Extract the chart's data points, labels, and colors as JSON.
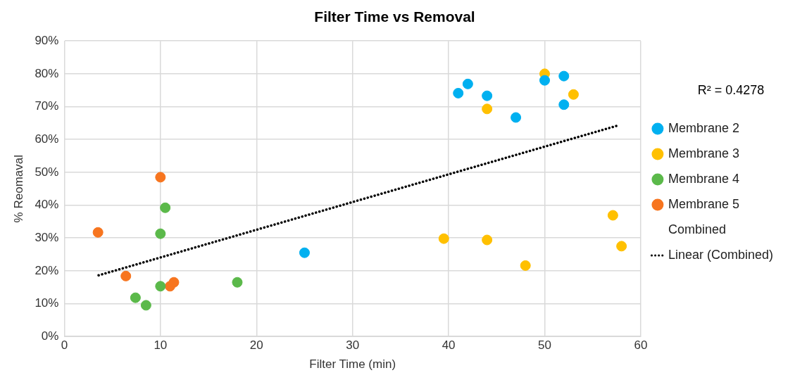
{
  "chart_data": {
    "type": "scatter",
    "title": "Filter Time vs Removal",
    "xlabel": "Filter Time (min)",
    "ylabel": "% Reomaval",
    "xlim": [
      0,
      60
    ],
    "xticks": [
      0,
      10,
      20,
      30,
      40,
      50,
      60
    ],
    "ylim": [
      0,
      90
    ],
    "yticks": [
      {
        "value": 0,
        "label": "0%"
      },
      {
        "value": 10,
        "label": "10%"
      },
      {
        "value": 20,
        "label": "20%"
      },
      {
        "value": 30,
        "label": "30%"
      },
      {
        "value": 40,
        "label": "40%"
      },
      {
        "value": 50,
        "label": "50%"
      },
      {
        "value": 60,
        "label": "60%"
      },
      {
        "value": 70,
        "label": "70%"
      },
      {
        "value": 80,
        "label": "80%"
      },
      {
        "value": 90,
        "label": "90%"
      }
    ],
    "grid": true,
    "legend": "right",
    "marker": "circle",
    "annotations": [
      "R² = 0.4278"
    ],
    "series": [
      {
        "name": "Membrane 2",
        "color": "#00b0f0",
        "x": [
          25,
          41,
          42,
          44,
          47,
          50,
          52,
          52
        ],
        "values": [
          25.5,
          74.1,
          76.9,
          73.3,
          66.7,
          78,
          79.3,
          70.6
        ]
      },
      {
        "name": "Membrane 3",
        "color": "#ffc000",
        "x": [
          39.5,
          44,
          44,
          48,
          50,
          53,
          57.1,
          58
        ],
        "values": [
          29.8,
          69.3,
          29.4,
          21.6,
          80,
          73.7,
          36.9,
          27.5
        ]
      },
      {
        "name": "Membrane 4",
        "color": "#5bb94a",
        "x": [
          7.4,
          8.5,
          10,
          10,
          10.5,
          18
        ],
        "values": [
          11.8,
          9.5,
          15.3,
          31.3,
          39.2,
          16.5
        ]
      },
      {
        "name": "Membrane 5",
        "color": "#f7751f",
        "x": [
          3.5,
          6.4,
          10,
          11,
          11.4
        ],
        "values": [
          31.7,
          18.4,
          48.5,
          15.3,
          16.5
        ]
      },
      {
        "name": "Combined"
      },
      {
        "name": "Linear (Combined)",
        "type": "line",
        "color": "#000000",
        "line_style": "dotted",
        "marker": "none",
        "x": [
          3.3,
          57.8
        ],
        "values": [
          18.4,
          64.4
        ]
      }
    ]
  }
}
